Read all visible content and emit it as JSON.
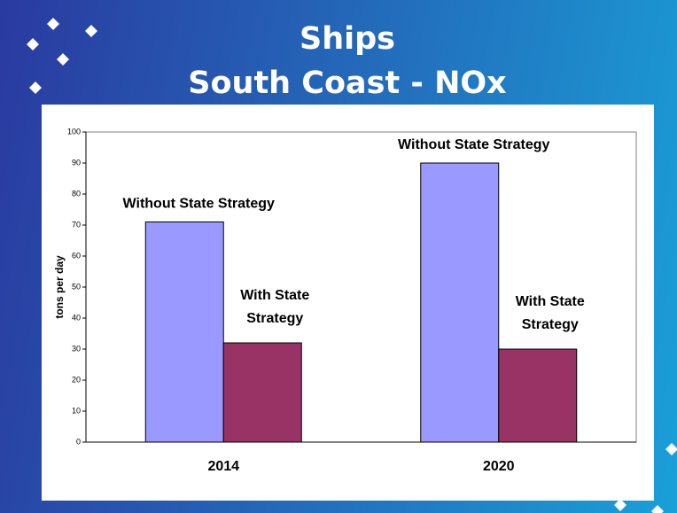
{
  "chart_data": {
    "type": "bar",
    "title": "Ships",
    "subtitle": "South Coast - NOx",
    "y_label": "tons per day",
    "categories": [
      "2014",
      "2020"
    ],
    "series": [
      {
        "name": "Without State Strategy",
        "color": "#9999ff",
        "values": [
          71,
          90
        ]
      },
      {
        "name": "With State Strategy",
        "color": "#993366",
        "values": [
          32,
          30
        ]
      }
    ],
    "ylim": [
      0,
      100
    ],
    "yticks": [
      0,
      10,
      20,
      30,
      40,
      50,
      60,
      70,
      80,
      90,
      100
    ],
    "grid": false
  }
}
